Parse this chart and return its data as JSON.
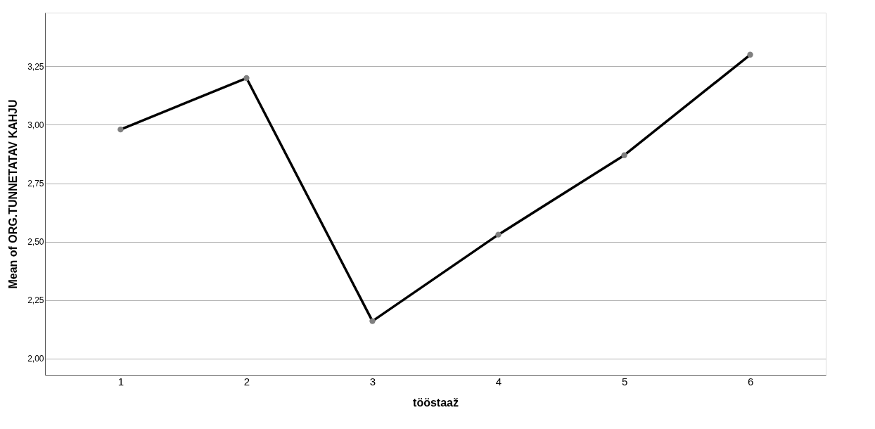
{
  "chart_data": {
    "type": "line",
    "xlabel": "tööstaaž",
    "ylabel": "Mean of ORG.TUNNETATAV KAHJU",
    "categories": [
      "1",
      "2",
      "3",
      "4",
      "5",
      "6"
    ],
    "series": [
      {
        "color": "#000000",
        "values": [
          2.98,
          3.2,
          2.16,
          2.53,
          2.87,
          3.3
        ]
      }
    ],
    "ylim": [
      1.93,
      3.48
    ],
    "yticks": [
      {
        "value": 2.0,
        "label": "2,00"
      },
      {
        "value": 2.25,
        "label": "2,25"
      },
      {
        "value": 2.5,
        "label": "2,50"
      },
      {
        "value": 2.75,
        "label": "2,75"
      },
      {
        "value": 3.0,
        "label": "3,00"
      },
      {
        "value": 3.25,
        "label": "3,25"
      }
    ],
    "grid": "y",
    "marker": "circle",
    "line_style": "solid"
  }
}
